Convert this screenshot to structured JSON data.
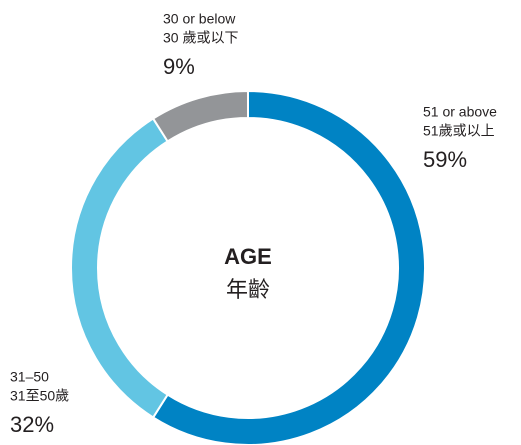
{
  "chart_data": {
    "type": "pie",
    "donut": true,
    "title": "AGE",
    "subtitle": "年齡",
    "categories": [
      "51 or above",
      "31–50",
      "30 or below"
    ],
    "categories_zh": [
      "51歲或以上",
      "31至50歲",
      "30 歲或以下"
    ],
    "values": [
      59,
      32,
      9
    ],
    "value_labels": [
      "59%",
      "32%",
      "9%"
    ],
    "colors": [
      "#0083c4",
      "#62c5e3",
      "#939598"
    ]
  }
}
